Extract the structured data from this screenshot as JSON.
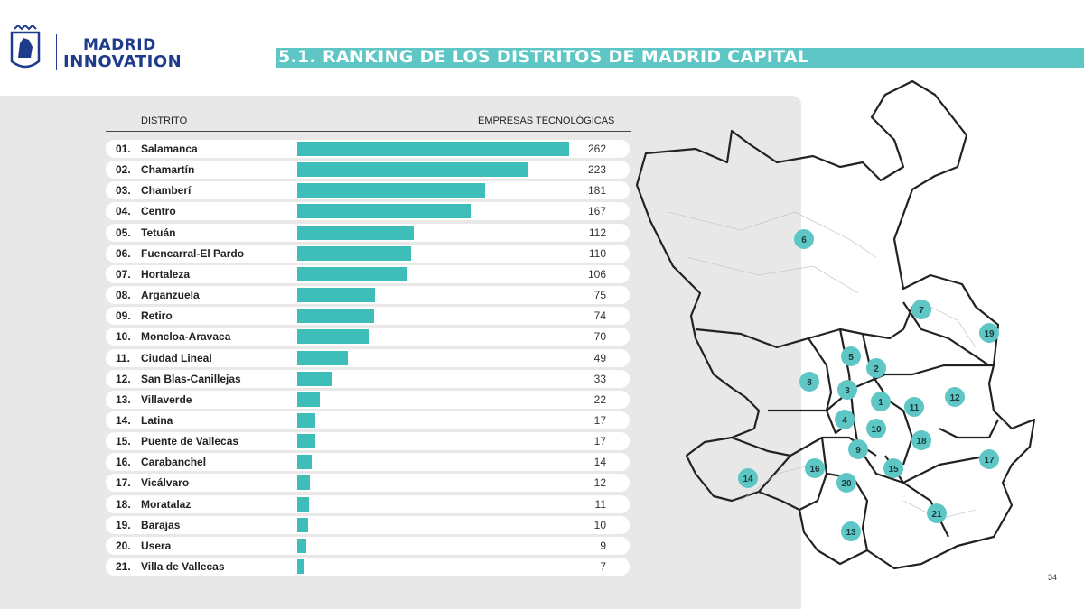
{
  "brand": {
    "line1": "MADRID",
    "line2": "INNOVATION"
  },
  "title": "5.1. RANKING DE LOS DISTRITOS DE MADRID CAPITAL",
  "page_number": "34",
  "colors": {
    "accent": "#3ebdb9",
    "title_bar": "#5ec7c5",
    "brand": "#1f3b8c",
    "panel": "#e8e8e8"
  },
  "chart_data": {
    "type": "bar",
    "orientation": "horizontal",
    "column_headers": {
      "category": "DISTRITO",
      "value": "EMPRESAS TECNOLÓGICAS"
    },
    "ranks": [
      "01.",
      "02.",
      "03.",
      "04.",
      "05.",
      "06.",
      "07.",
      "08.",
      "09.",
      "10.",
      "11.",
      "12.",
      "13.",
      "14.",
      "15.",
      "16.",
      "17.",
      "18.",
      "19.",
      "20.",
      "21."
    ],
    "categories": [
      "Salamanca",
      "Chamartín",
      "Chamberí",
      "Centro",
      "Tetuán",
      "Fuencarral-El Pardo",
      "Hortaleza",
      "Arganzuela",
      "Retiro",
      "Moncloa-Aravaca",
      "Ciudad Lineal",
      "San Blas-Canillejas",
      "Villaverde",
      "Latina",
      "Puente de Vallecas",
      "Carabanchel",
      "Vicálvaro",
      "Moratalaz",
      "Barajas",
      "Usera",
      "Villa de Vallecas"
    ],
    "values": [
      262,
      223,
      181,
      167,
      112,
      110,
      106,
      75,
      74,
      70,
      49,
      33,
      22,
      17,
      17,
      14,
      12,
      11,
      10,
      9,
      7
    ],
    "xlim": [
      0,
      262
    ],
    "grid": false
  },
  "map": {
    "district_numbers": [
      "1",
      "2",
      "3",
      "4",
      "5",
      "6",
      "7",
      "8",
      "9",
      "10",
      "11",
      "12",
      "13",
      "14",
      "15",
      "16",
      "17",
      "18",
      "19",
      "20",
      "21"
    ]
  }
}
